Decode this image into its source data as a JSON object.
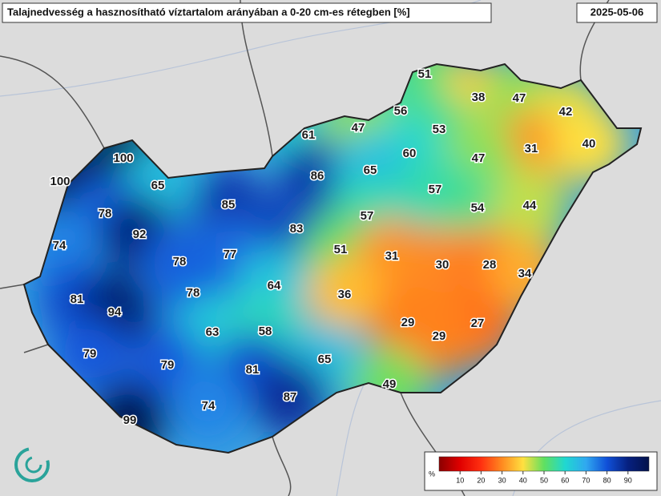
{
  "header": {
    "title": "Talajnedvesség a hasznosítható víztartalom arányában a 0-20 cm-es rétegben [%]",
    "date": "2025-05-06"
  },
  "stations": [
    51,
    38,
    47,
    56,
    42,
    61,
    47,
    53,
    31,
    40,
    100,
    60,
    47,
    86,
    65,
    100,
    65,
    57,
    85,
    54,
    44,
    78,
    57,
    83,
    92,
    74,
    51,
    31,
    30,
    28,
    77,
    78,
    34,
    81,
    64,
    78,
    36,
    94,
    29,
    27,
    63,
    58,
    29,
    79,
    65,
    79,
    81,
    49,
    87,
    74,
    99
  ],
  "legend": {
    "unit": "%",
    "lim": [
      0,
      100
    ],
    "ticks": [
      10,
      20,
      30,
      40,
      50,
      60,
      70,
      80,
      90
    ]
  }
}
